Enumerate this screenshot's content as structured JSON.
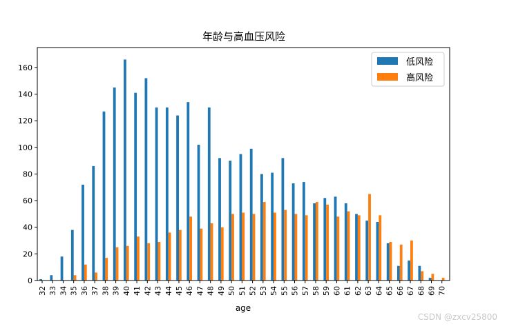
{
  "chart_data": {
    "type": "bar",
    "title": "年龄与高血压风险",
    "xlabel": "age",
    "ylabel": "",
    "ylim": [
      0,
      175
    ],
    "yticks": [
      0,
      20,
      40,
      60,
      80,
      100,
      120,
      140,
      160
    ],
    "legend_position": "top-right",
    "grid": false,
    "categories": [
      "32",
      "33",
      "34",
      "35",
      "36",
      "37",
      "38",
      "39",
      "40",
      "41",
      "42",
      "43",
      "44",
      "45",
      "46",
      "47",
      "48",
      "49",
      "50",
      "51",
      "52",
      "53",
      "54",
      "55",
      "56",
      "57",
      "58",
      "59",
      "60",
      "61",
      "62",
      "63",
      "64",
      "65",
      "66",
      "67",
      "68",
      "69",
      "70"
    ],
    "series": [
      {
        "name": "低风险",
        "color": "#1f77b4",
        "values": [
          1,
          4,
          18,
          38,
          72,
          86,
          127,
          145,
          166,
          141,
          152,
          130,
          130,
          124,
          134,
          102,
          130,
          92,
          90,
          95,
          99,
          80,
          81,
          92,
          73,
          74,
          58,
          62,
          63,
          58,
          50,
          45,
          44,
          28,
          11,
          15,
          11,
          2,
          0
        ]
      },
      {
        "name": "高风险",
        "color": "#ff7f0e",
        "values": [
          0,
          0,
          0,
          4,
          12,
          6,
          17,
          25,
          26,
          33,
          28,
          29,
          36,
          38,
          48,
          39,
          43,
          40,
          50,
          51,
          50,
          59,
          51,
          53,
          50,
          49,
          59,
          57,
          48,
          52,
          49,
          65,
          49,
          29,
          27,
          30,
          7,
          5,
          2
        ]
      }
    ]
  },
  "watermark": "CSDN @zxcv25800"
}
